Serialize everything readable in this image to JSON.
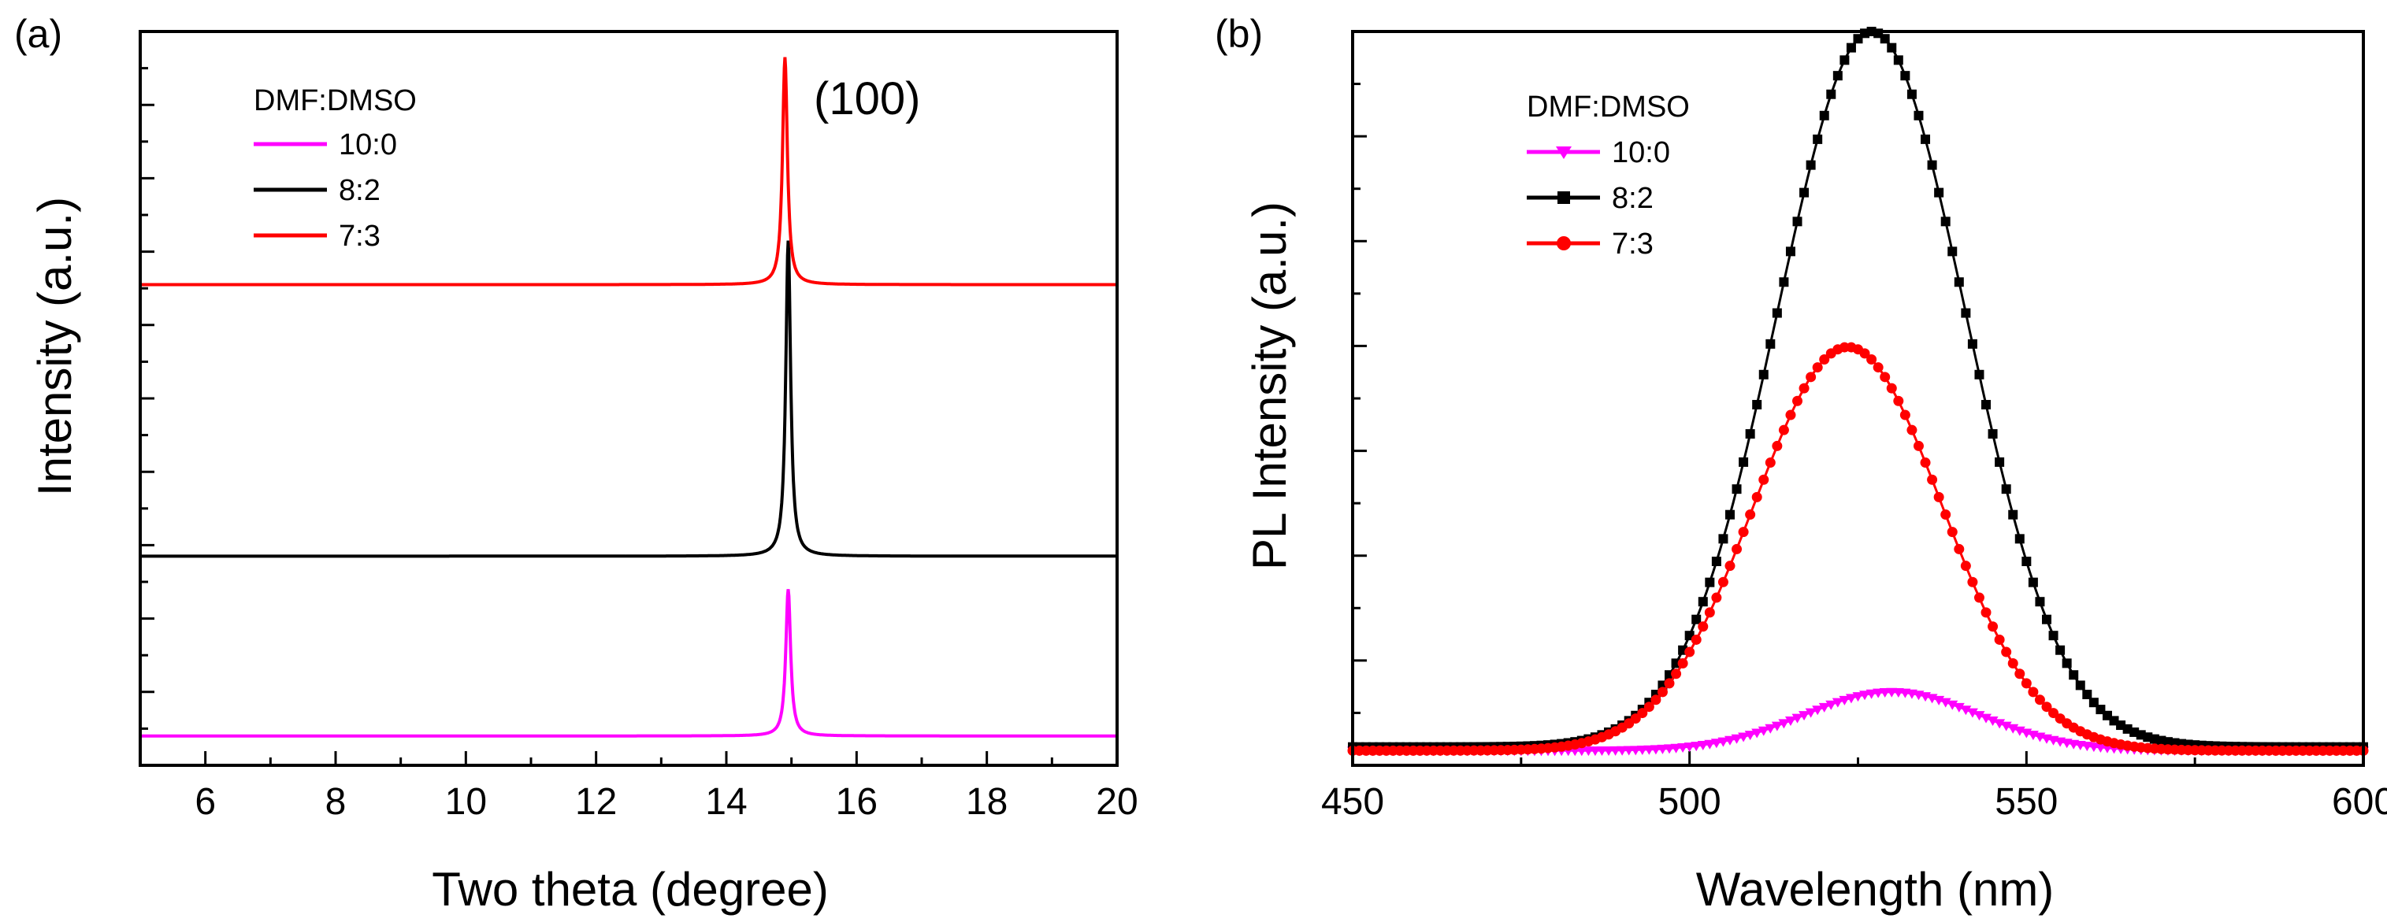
{
  "chart_data": [
    {
      "type": "line",
      "panel_label": "(a)",
      "title": "",
      "xlabel": "Two theta (degree)",
      "ylabel": "Intensity (a.u.)",
      "xlim": [
        5,
        20
      ],
      "ylim": [
        0,
        1
      ],
      "x_ticks": [
        6,
        8,
        10,
        12,
        14,
        16,
        18,
        20
      ],
      "annotation": "(100)",
      "annotation_x": 15.1,
      "annotation_y": 0.94,
      "legend": {
        "title": "DMF:DMSO",
        "position": "top-left"
      },
      "series": [
        {
          "name": "10:0",
          "color": "#ff00ff",
          "baseline": 0.04,
          "peak_x": 14.95,
          "peak_height": 0.2,
          "peak_width": 0.045
        },
        {
          "name": "8:2",
          "color": "#000000",
          "baseline": 0.285,
          "peak_x": 14.95,
          "peak_height": 0.43,
          "peak_width": 0.045
        },
        {
          "name": "7:3",
          "color": "#ff0000",
          "baseline": 0.655,
          "peak_x": 14.9,
          "peak_height": 0.31,
          "peak_width": 0.045
        }
      ]
    },
    {
      "type": "line",
      "panel_label": "(b)",
      "title": "",
      "xlabel": "Wavelength (nm)",
      "ylabel": "PL Intensity (a.u.)",
      "xlim": [
        450,
        600
      ],
      "ylim": [
        0,
        1
      ],
      "x_ticks": [
        450,
        500,
        550,
        600
      ],
      "legend": {
        "title": "DMF:DMSO",
        "position": "top-left"
      },
      "series": [
        {
          "name": "10:0",
          "color": "#ff00ff",
          "marker": "triangle-down",
          "baseline": 0.02,
          "peak_x": 530,
          "peak_height": 0.08,
          "sigma": 13
        },
        {
          "name": "8:2",
          "color": "#000000",
          "marker": "square",
          "baseline": 0.025,
          "peak_x": 527,
          "peak_height": 0.975,
          "sigma": 14
        },
        {
          "name": "7:3",
          "color": "#ff0000",
          "marker": "circle",
          "baseline": 0.02,
          "peak_x": 523.5,
          "peak_height": 0.55,
          "sigma": 14
        }
      ]
    }
  ]
}
